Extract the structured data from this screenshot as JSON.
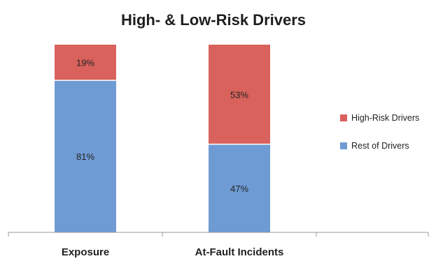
{
  "chart_data": {
    "type": "bar",
    "stacked": true,
    "title": "High- & Low-Risk Drivers",
    "categories": [
      "Exposure",
      "At-Fault Incidents"
    ],
    "series": [
      {
        "name": "Rest of Drivers",
        "values": [
          81,
          47
        ],
        "labels": [
          "81%",
          "47%"
        ],
        "color": "#6f9bd4"
      },
      {
        "name": "High-Risk Drivers",
        "values": [
          19,
          53
        ],
        "labels": [
          "19%",
          "53%"
        ],
        "color": "#d9625c"
      }
    ],
    "ylim": [
      0,
      100
    ],
    "grid": false,
    "legend_position": "right",
    "legend_order": [
      "High-Risk Drivers",
      "Rest of Drivers"
    ]
  }
}
